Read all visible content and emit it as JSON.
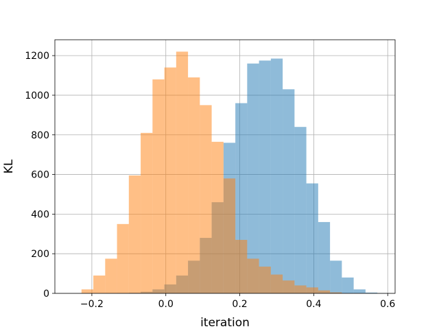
{
  "chart_data": {
    "type": "bar",
    "subtype": "overlapping-histogram",
    "title": "",
    "xlabel": "iteration",
    "ylabel": "KL",
    "xlim": [
      -0.3,
      0.62
    ],
    "ylim": [
      0,
      1280
    ],
    "xticks": [
      -0.2,
      0.0,
      0.2,
      0.4,
      0.6
    ],
    "xtick_labels": [
      "−0.2",
      "0.0",
      "0.2",
      "0.4",
      "0.6"
    ],
    "yticks": [
      0,
      200,
      400,
      600,
      800,
      1000,
      1200
    ],
    "ytick_labels": [
      "0",
      "200",
      "400",
      "600",
      "800",
      "1000",
      "1200"
    ],
    "grid": true,
    "legend": "none",
    "series": [
      {
        "color": "#1f77b4",
        "alpha": 0.5,
        "bin_edges": [
          -0.165,
          -0.132,
          -0.1,
          -0.068,
          -0.036,
          -0.004,
          0.028,
          0.06,
          0.092,
          0.124,
          0.156,
          0.188,
          0.22,
          0.252,
          0.284,
          0.316,
          0.348,
          0.38,
          0.412,
          0.444,
          0.476,
          0.508,
          0.54,
          0.572,
          0.604
        ],
        "counts": [
          1,
          2,
          3,
          8,
          20,
          45,
          90,
          165,
          280,
          460,
          760,
          960,
          1160,
          1175,
          1185,
          1030,
          840,
          555,
          360,
          165,
          80,
          20,
          4,
          1
        ]
      },
      {
        "color": "#ff7f0e",
        "alpha": 0.5,
        "bin_edges": [
          -0.228,
          -0.196,
          -0.164,
          -0.132,
          -0.1,
          -0.068,
          -0.036,
          -0.004,
          0.028,
          0.06,
          0.092,
          0.124,
          0.156,
          0.188,
          0.22,
          0.252,
          0.284,
          0.316,
          0.348,
          0.38,
          0.412,
          0.444,
          0.476
        ],
        "counts": [
          20,
          90,
          175,
          350,
          595,
          810,
          1080,
          1140,
          1220,
          1090,
          950,
          765,
          580,
          270,
          175,
          135,
          95,
          65,
          40,
          30,
          15,
          5
        ]
      }
    ]
  }
}
